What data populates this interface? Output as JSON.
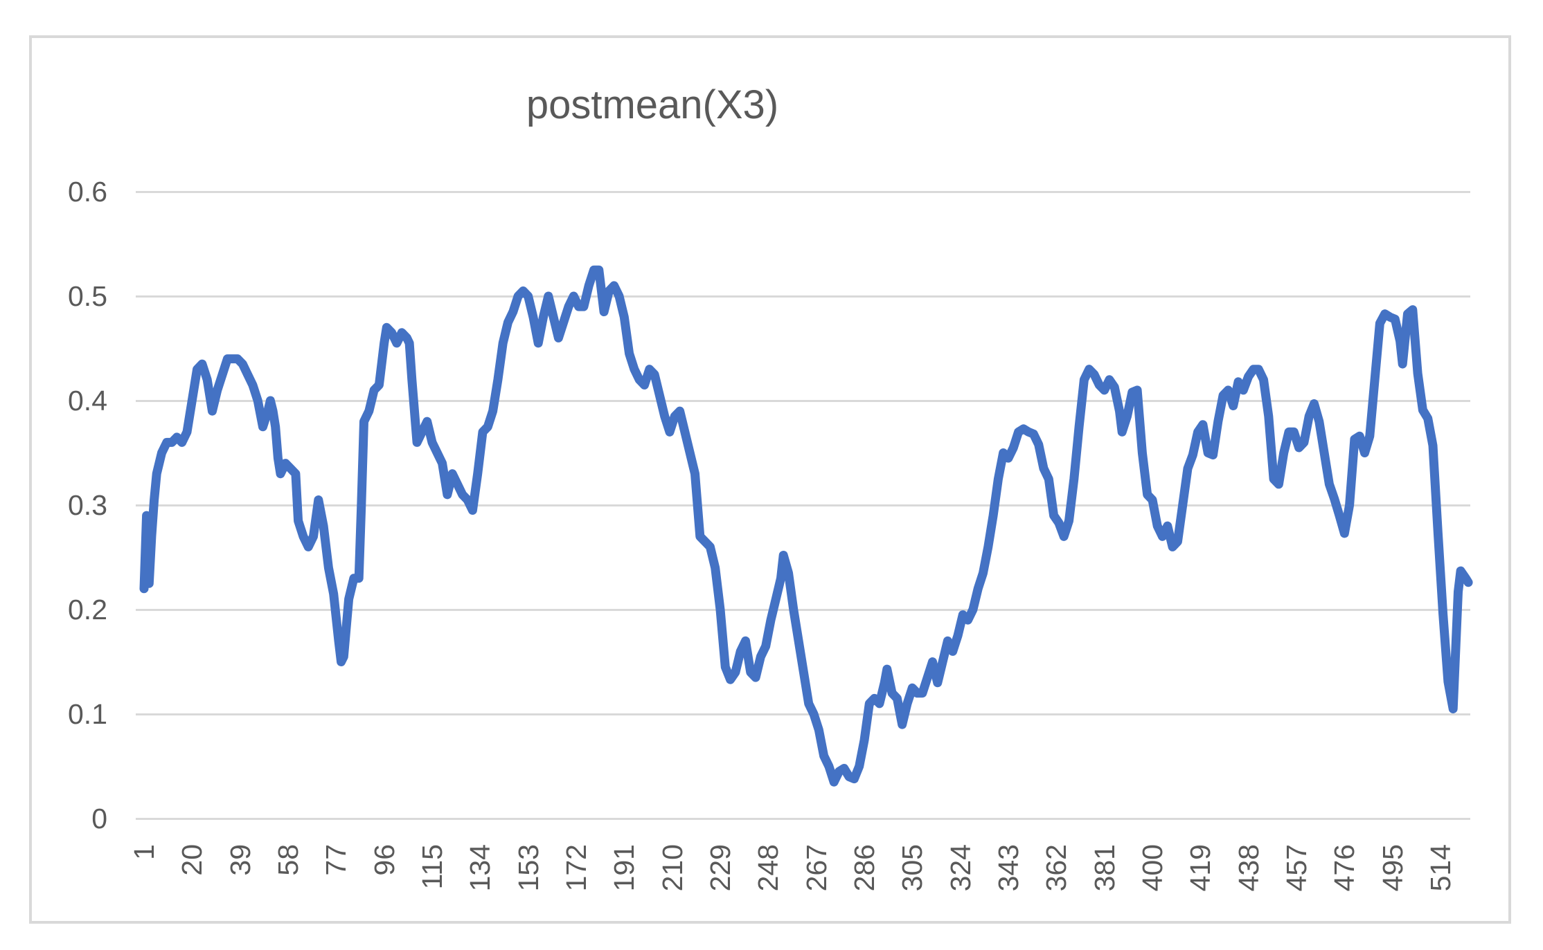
{
  "chart": {
    "title": "postmean(X3)",
    "colors": {
      "series": "#4472C4",
      "text": "#595959",
      "gridline": "#D9D9D9",
      "frame_border": "#D9D9D9",
      "background": "#FFFFFF"
    }
  },
  "chart_data": {
    "type": "line",
    "title": "postmean(X3)",
    "xlabel": "",
    "ylabel": "",
    "ylim": [
      0,
      0.6
    ],
    "y_tick_labels": [
      "0",
      "0.1",
      "0.2",
      "0.3",
      "0.4",
      "0.5",
      "0.6"
    ],
    "x_tick_labels": [
      "1",
      "20",
      "39",
      "58",
      "77",
      "96",
      "115",
      "134",
      "153",
      "172",
      "191",
      "210",
      "229",
      "248",
      "267",
      "286",
      "305",
      "324",
      "343",
      "362",
      "381",
      "400",
      "419",
      "438",
      "457",
      "476",
      "495",
      "514"
    ],
    "x_tick_interval": 19,
    "n_points": 525,
    "grid": true,
    "legend": false,
    "points": [
      [
        1,
        0.22
      ],
      [
        2,
        0.29
      ],
      [
        3,
        0.225
      ],
      [
        4,
        0.27
      ],
      [
        5,
        0.305
      ],
      [
        6,
        0.33
      ],
      [
        8,
        0.35
      ],
      [
        10,
        0.36
      ],
      [
        12,
        0.36
      ],
      [
        14,
        0.365
      ],
      [
        16,
        0.36
      ],
      [
        18,
        0.37
      ],
      [
        20,
        0.4
      ],
      [
        22,
        0.43
      ],
      [
        24,
        0.435
      ],
      [
        26,
        0.42
      ],
      [
        28,
        0.39
      ],
      [
        30,
        0.41
      ],
      [
        32,
        0.425
      ],
      [
        34,
        0.44
      ],
      [
        36,
        0.44
      ],
      [
        38,
        0.44
      ],
      [
        40,
        0.435
      ],
      [
        42,
        0.425
      ],
      [
        44,
        0.415
      ],
      [
        46,
        0.4
      ],
      [
        48,
        0.375
      ],
      [
        50,
        0.39
      ],
      [
        51,
        0.4
      ],
      [
        52,
        0.39
      ],
      [
        53,
        0.375
      ],
      [
        54,
        0.345
      ],
      [
        55,
        0.33
      ],
      [
        57,
        0.34
      ],
      [
        59,
        0.335
      ],
      [
        61,
        0.33
      ],
      [
        62,
        0.285
      ],
      [
        64,
        0.27
      ],
      [
        66,
        0.26
      ],
      [
        68,
        0.27
      ],
      [
        70,
        0.305
      ],
      [
        72,
        0.28
      ],
      [
        74,
        0.24
      ],
      [
        76,
        0.215
      ],
      [
        78,
        0.17
      ],
      [
        79,
        0.15
      ],
      [
        80,
        0.155
      ],
      [
        82,
        0.21
      ],
      [
        84,
        0.23
      ],
      [
        86,
        0.23
      ],
      [
        87,
        0.3
      ],
      [
        88,
        0.38
      ],
      [
        90,
        0.39
      ],
      [
        92,
        0.41
      ],
      [
        94,
        0.415
      ],
      [
        96,
        0.455
      ],
      [
        97,
        0.47
      ],
      [
        99,
        0.465
      ],
      [
        101,
        0.455
      ],
      [
        103,
        0.465
      ],
      [
        105,
        0.46
      ],
      [
        106,
        0.455
      ],
      [
        107,
        0.42
      ],
      [
        109,
        0.36
      ],
      [
        111,
        0.37
      ],
      [
        113,
        0.38
      ],
      [
        115,
        0.36
      ],
      [
        117,
        0.35
      ],
      [
        119,
        0.34
      ],
      [
        121,
        0.31
      ],
      [
        123,
        0.33
      ],
      [
        125,
        0.32
      ],
      [
        127,
        0.31
      ],
      [
        129,
        0.305
      ],
      [
        131,
        0.295
      ],
      [
        133,
        0.33
      ],
      [
        135,
        0.37
      ],
      [
        137,
        0.375
      ],
      [
        139,
        0.39
      ],
      [
        141,
        0.42
      ],
      [
        143,
        0.455
      ],
      [
        145,
        0.475
      ],
      [
        147,
        0.485
      ],
      [
        149,
        0.5
      ],
      [
        151,
        0.505
      ],
      [
        153,
        0.5
      ],
      [
        155,
        0.48
      ],
      [
        157,
        0.455
      ],
      [
        159,
        0.48
      ],
      [
        161,
        0.5
      ],
      [
        163,
        0.48
      ],
      [
        165,
        0.46
      ],
      [
        167,
        0.475
      ],
      [
        169,
        0.49
      ],
      [
        171,
        0.5
      ],
      [
        173,
        0.49
      ],
      [
        175,
        0.49
      ],
      [
        177,
        0.51
      ],
      [
        179,
        0.525
      ],
      [
        181,
        0.525
      ],
      [
        183,
        0.485
      ],
      [
        185,
        0.505
      ],
      [
        187,
        0.51
      ],
      [
        189,
        0.5
      ],
      [
        191,
        0.48
      ],
      [
        193,
        0.445
      ],
      [
        195,
        0.43
      ],
      [
        197,
        0.42
      ],
      [
        199,
        0.415
      ],
      [
        201,
        0.43
      ],
      [
        203,
        0.425
      ],
      [
        205,
        0.405
      ],
      [
        207,
        0.385
      ],
      [
        209,
        0.37
      ],
      [
        211,
        0.385
      ],
      [
        213,
        0.39
      ],
      [
        215,
        0.37
      ],
      [
        217,
        0.35
      ],
      [
        219,
        0.33
      ],
      [
        221,
        0.27
      ],
      [
        223,
        0.265
      ],
      [
        225,
        0.26
      ],
      [
        227,
        0.24
      ],
      [
        229,
        0.2
      ],
      [
        231,
        0.145
      ],
      [
        233,
        0.133
      ],
      [
        235,
        0.14
      ],
      [
        237,
        0.16
      ],
      [
        239,
        0.17
      ],
      [
        241,
        0.14
      ],
      [
        243,
        0.135
      ],
      [
        245,
        0.155
      ],
      [
        247,
        0.165
      ],
      [
        249,
        0.19
      ],
      [
        251,
        0.21
      ],
      [
        253,
        0.23
      ],
      [
        254,
        0.252
      ],
      [
        256,
        0.235
      ],
      [
        258,
        0.2
      ],
      [
        260,
        0.17
      ],
      [
        262,
        0.14
      ],
      [
        264,
        0.11
      ],
      [
        266,
        0.1
      ],
      [
        268,
        0.085
      ],
      [
        270,
        0.06
      ],
      [
        272,
        0.05
      ],
      [
        274,
        0.035
      ],
      [
        276,
        0.045
      ],
      [
        278,
        0.048
      ],
      [
        280,
        0.04
      ],
      [
        282,
        0.038
      ],
      [
        284,
        0.05
      ],
      [
        286,
        0.075
      ],
      [
        288,
        0.11
      ],
      [
        290,
        0.115
      ],
      [
        292,
        0.11
      ],
      [
        294,
        0.13
      ],
      [
        295,
        0.143
      ],
      [
        297,
        0.12
      ],
      [
        299,
        0.115
      ],
      [
        301,
        0.09
      ],
      [
        303,
        0.11
      ],
      [
        305,
        0.125
      ],
      [
        307,
        0.12
      ],
      [
        309,
        0.12
      ],
      [
        311,
        0.135
      ],
      [
        313,
        0.15
      ],
      [
        315,
        0.13
      ],
      [
        317,
        0.15
      ],
      [
        319,
        0.17
      ],
      [
        321,
        0.16
      ],
      [
        323,
        0.175
      ],
      [
        325,
        0.195
      ],
      [
        327,
        0.19
      ],
      [
        329,
        0.2
      ],
      [
        331,
        0.22
      ],
      [
        333,
        0.235
      ],
      [
        335,
        0.26
      ],
      [
        337,
        0.29
      ],
      [
        339,
        0.325
      ],
      [
        341,
        0.35
      ],
      [
        343,
        0.345
      ],
      [
        345,
        0.355
      ],
      [
        347,
        0.37
      ],
      [
        349,
        0.373
      ],
      [
        351,
        0.37
      ],
      [
        353,
        0.368
      ],
      [
        355,
        0.358
      ],
      [
        357,
        0.335
      ],
      [
        359,
        0.325
      ],
      [
        361,
        0.29
      ],
      [
        363,
        0.283
      ],
      [
        365,
        0.27
      ],
      [
        367,
        0.285
      ],
      [
        369,
        0.325
      ],
      [
        371,
        0.375
      ],
      [
        373,
        0.42
      ],
      [
        375,
        0.43
      ],
      [
        377,
        0.425
      ],
      [
        379,
        0.415
      ],
      [
        381,
        0.41
      ],
      [
        383,
        0.42
      ],
      [
        385,
        0.413
      ],
      [
        387,
        0.39
      ],
      [
        388,
        0.37
      ],
      [
        390,
        0.385
      ],
      [
        392,
        0.408
      ],
      [
        394,
        0.41
      ],
      [
        396,
        0.35
      ],
      [
        398,
        0.31
      ],
      [
        400,
        0.305
      ],
      [
        402,
        0.28
      ],
      [
        404,
        0.27
      ],
      [
        406,
        0.28
      ],
      [
        408,
        0.26
      ],
      [
        410,
        0.265
      ],
      [
        412,
        0.3
      ],
      [
        414,
        0.335
      ],
      [
        416,
        0.348
      ],
      [
        418,
        0.37
      ],
      [
        420,
        0.377
      ],
      [
        422,
        0.35
      ],
      [
        424,
        0.348
      ],
      [
        426,
        0.38
      ],
      [
        428,
        0.405
      ],
      [
        430,
        0.41
      ],
      [
        432,
        0.395
      ],
      [
        434,
        0.418
      ],
      [
        436,
        0.41
      ],
      [
        438,
        0.423
      ],
      [
        440,
        0.43
      ],
      [
        442,
        0.43
      ],
      [
        444,
        0.42
      ],
      [
        446,
        0.385
      ],
      [
        448,
        0.325
      ],
      [
        450,
        0.32
      ],
      [
        452,
        0.35
      ],
      [
        454,
        0.37
      ],
      [
        456,
        0.37
      ],
      [
        458,
        0.355
      ],
      [
        460,
        0.36
      ],
      [
        462,
        0.385
      ],
      [
        464,
        0.397
      ],
      [
        466,
        0.38
      ],
      [
        468,
        0.35
      ],
      [
        470,
        0.32
      ],
      [
        472,
        0.306
      ],
      [
        474,
        0.29
      ],
      [
        476,
        0.273
      ],
      [
        478,
        0.3
      ],
      [
        480,
        0.363
      ],
      [
        482,
        0.366
      ],
      [
        484,
        0.35
      ],
      [
        486,
        0.366
      ],
      [
        488,
        0.42
      ],
      [
        490,
        0.474
      ],
      [
        492,
        0.483
      ],
      [
        494,
        0.48
      ],
      [
        496,
        0.478
      ],
      [
        498,
        0.457
      ],
      [
        499,
        0.435
      ],
      [
        501,
        0.483
      ],
      [
        503,
        0.487
      ],
      [
        505,
        0.426
      ],
      [
        507,
        0.391
      ],
      [
        509,
        0.383
      ],
      [
        511,
        0.357
      ],
      [
        513,
        0.274
      ],
      [
        515,
        0.196
      ],
      [
        517,
        0.131
      ],
      [
        519,
        0.105
      ],
      [
        521,
        0.217
      ],
      [
        522,
        0.237
      ],
      [
        524,
        0.23
      ],
      [
        525,
        0.226
      ]
    ]
  }
}
